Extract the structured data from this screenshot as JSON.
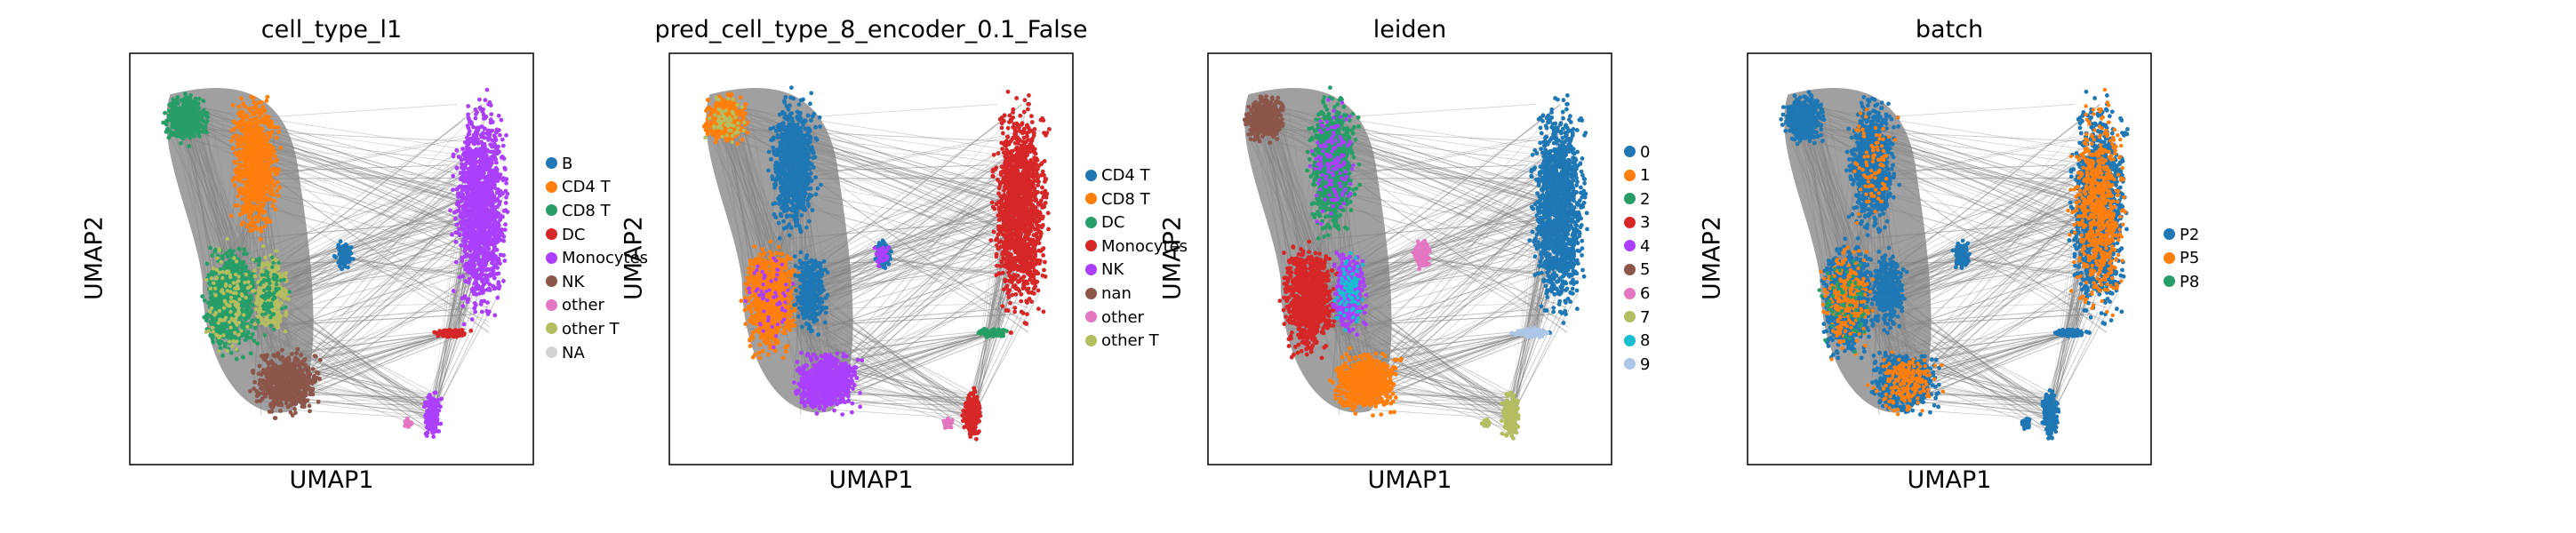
{
  "chart_data": [
    {
      "type": "scatter",
      "title": "cell_type_l1",
      "xlabel": "UMAP1",
      "ylabel": "UMAP2",
      "grid": false,
      "legend_placement": "right",
      "series": [
        {
          "name": "B",
          "color": "#1f77b4"
        },
        {
          "name": "CD4 T",
          "color": "#ff7f0e"
        },
        {
          "name": "CD8 T",
          "color": "#279e68"
        },
        {
          "name": "DC",
          "color": "#d62728"
        },
        {
          "name": "Monocytes",
          "color": "#aa40fc"
        },
        {
          "name": "NK",
          "color": "#8c564b"
        },
        {
          "name": "other",
          "color": "#e377c2"
        },
        {
          "name": "other T",
          "color": "#b5bd61"
        },
        {
          "name": "NA",
          "color": "#d3d3d3"
        }
      ]
    },
    {
      "type": "scatter",
      "title": "pred_cell_type_8_encoder_0.1_False",
      "xlabel": "UMAP1",
      "ylabel": "UMAP2",
      "grid": false,
      "legend_placement": "right",
      "series": [
        {
          "name": "CD4 T",
          "color": "#1f77b4"
        },
        {
          "name": "CD8 T",
          "color": "#ff7f0e"
        },
        {
          "name": "DC",
          "color": "#279e68"
        },
        {
          "name": "Monocytes",
          "color": "#d62728"
        },
        {
          "name": "NK",
          "color": "#aa40fc"
        },
        {
          "name": "nan",
          "color": "#8c564b"
        },
        {
          "name": "other",
          "color": "#e377c2"
        },
        {
          "name": "other T",
          "color": "#b5bd61"
        }
      ]
    },
    {
      "type": "scatter",
      "title": "leiden",
      "xlabel": "UMAP1",
      "ylabel": "UMAP2",
      "grid": false,
      "legend_placement": "right",
      "series": [
        {
          "name": "0",
          "color": "#1f77b4"
        },
        {
          "name": "1",
          "color": "#ff7f0e"
        },
        {
          "name": "2",
          "color": "#279e68"
        },
        {
          "name": "3",
          "color": "#d62728"
        },
        {
          "name": "4",
          "color": "#aa40fc"
        },
        {
          "name": "5",
          "color": "#8c564b"
        },
        {
          "name": "6",
          "color": "#e377c2"
        },
        {
          "name": "7",
          "color": "#b5bd61"
        },
        {
          "name": "8",
          "color": "#17becf"
        },
        {
          "name": "9",
          "color": "#aec7e8"
        }
      ]
    },
    {
      "type": "scatter",
      "title": "batch",
      "xlabel": "UMAP1",
      "ylabel": "UMAP2",
      "grid": false,
      "legend_placement": "right",
      "series": [
        {
          "name": "P2",
          "color": "#1f77b4"
        },
        {
          "name": "P5",
          "color": "#ff7f0e"
        },
        {
          "name": "P8",
          "color": "#279e68"
        }
      ]
    }
  ],
  "edge_color": "#808080"
}
